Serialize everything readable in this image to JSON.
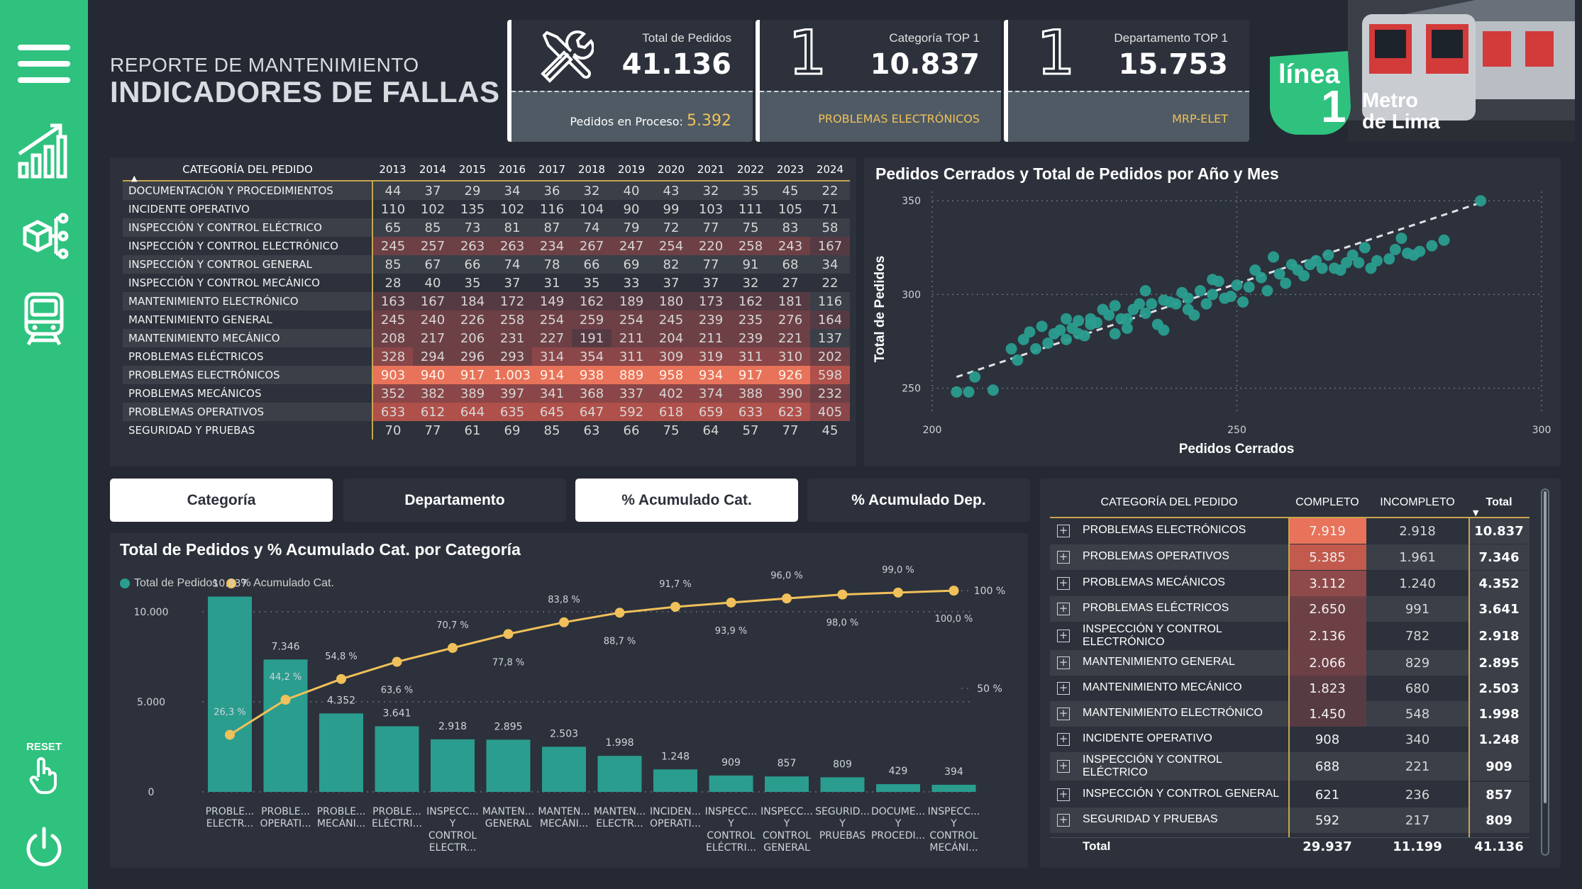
{
  "header": {
    "subtitle": "REPORTE DE MANTENIMIENTO",
    "title": "INDICADORES DE FALLAS"
  },
  "sidebar": {
    "reset_label": "RESET",
    "icons": [
      "menu-icon",
      "chart-growth-icon",
      "cube-network-icon",
      "train-icon",
      "hand-pointer-icon",
      "power-icon"
    ]
  },
  "kpis": [
    {
      "label": "Total de Pedidos",
      "value": "41.136",
      "sub_label": "Pedidos en Proceso:",
      "sub_value": "5.392",
      "icon": "tools-icon"
    },
    {
      "label": "Categoría TOP 1",
      "value": "10.837",
      "sub_label": "PROBLEMAS ELECTRÓNICOS",
      "icon": "number-one-icon",
      "icon_text": "1"
    },
    {
      "label": "Departamento TOP 1",
      "value": "15.753",
      "sub_label": "MRP-ELET",
      "icon": "number-one-icon",
      "icon_text": "1"
    }
  ],
  "logo": {
    "line": "línea",
    "number": "1",
    "brand_line1": "Metro",
    "brand_line2": "de Lima"
  },
  "matrix": {
    "header_category": "CATEGORÍA DEL PEDIDO",
    "years": [
      "2013",
      "2014",
      "2015",
      "2016",
      "2017",
      "2018",
      "2019",
      "2020",
      "2021",
      "2022",
      "2023",
      "2024"
    ],
    "rows": [
      {
        "name": "DOCUMENTACIÓN Y PROCEDIMIENTOS",
        "values": [
          "44",
          "37",
          "29",
          "34",
          "36",
          "32",
          "40",
          "43",
          "32",
          "35",
          "45",
          "22"
        ]
      },
      {
        "name": "INCIDENTE OPERATIVO",
        "values": [
          "110",
          "102",
          "135",
          "102",
          "116",
          "104",
          "90",
          "99",
          "103",
          "111",
          "105",
          "71"
        ]
      },
      {
        "name": "INSPECCIÓN Y CONTROL ELÉCTRICO",
        "values": [
          "65",
          "85",
          "73",
          "81",
          "87",
          "74",
          "79",
          "72",
          "77",
          "75",
          "83",
          "58"
        ]
      },
      {
        "name": "INSPECCIÓN Y CONTROL ELECTRÓNICO",
        "values": [
          "245",
          "257",
          "263",
          "263",
          "234",
          "267",
          "247",
          "254",
          "220",
          "258",
          "243",
          "167"
        ]
      },
      {
        "name": "INSPECCIÓN Y CONTROL GENERAL",
        "values": [
          "85",
          "67",
          "66",
          "74",
          "78",
          "66",
          "69",
          "82",
          "77",
          "91",
          "68",
          "34"
        ]
      },
      {
        "name": "INSPECCIÓN Y CONTROL MECÁNICO",
        "values": [
          "28",
          "40",
          "35",
          "37",
          "31",
          "35",
          "33",
          "37",
          "37",
          "32",
          "27",
          "22"
        ]
      },
      {
        "name": "MANTENIMIENTO ELECTRÓNICO",
        "values": [
          "163",
          "167",
          "184",
          "172",
          "149",
          "162",
          "189",
          "180",
          "173",
          "162",
          "181",
          "116"
        ]
      },
      {
        "name": "MANTENIMIENTO GENERAL",
        "values": [
          "245",
          "240",
          "226",
          "258",
          "254",
          "259",
          "254",
          "245",
          "239",
          "235",
          "276",
          "164"
        ]
      },
      {
        "name": "MANTENIMIENTO MECÁNICO",
        "values": [
          "208",
          "217",
          "206",
          "231",
          "227",
          "191",
          "211",
          "204",
          "211",
          "239",
          "221",
          "137"
        ]
      },
      {
        "name": "PROBLEMAS ELÉCTRICOS",
        "values": [
          "328",
          "294",
          "296",
          "293",
          "314",
          "354",
          "311",
          "309",
          "319",
          "311",
          "310",
          "202"
        ]
      },
      {
        "name": "PROBLEMAS ELECTRÓNICOS",
        "values": [
          "903",
          "940",
          "917",
          "1.003",
          "914",
          "938",
          "889",
          "958",
          "934",
          "917",
          "926",
          "598"
        ]
      },
      {
        "name": "PROBLEMAS MECÁNICOS",
        "values": [
          "352",
          "382",
          "389",
          "397",
          "341",
          "368",
          "337",
          "402",
          "374",
          "388",
          "390",
          "232"
        ]
      },
      {
        "name": "PROBLEMAS OPERATIVOS",
        "values": [
          "633",
          "612",
          "644",
          "635",
          "645",
          "647",
          "592",
          "618",
          "659",
          "633",
          "623",
          "405"
        ]
      },
      {
        "name": "SEGURIDAD Y PRUEBAS",
        "values": [
          "70",
          "77",
          "61",
          "69",
          "85",
          "63",
          "66",
          "75",
          "64",
          "57",
          "77",
          "45"
        ]
      }
    ]
  },
  "scatter": {
    "title": "Pedidos Cerrados y Total de Pedidos por Año y Mes",
    "xlabel": "Pedidos Cerrados",
    "ylabel": "Total de Pedidos",
    "xticks": [
      "200",
      "250",
      "300"
    ],
    "yticks": [
      "250",
      "300",
      "350"
    ]
  },
  "toggle_buttons": [
    {
      "label": "Categoría",
      "active": true
    },
    {
      "label": "Departamento",
      "active": false
    },
    {
      "label": "% Acumulado Cat.",
      "active": true
    },
    {
      "label": "% Acumulado Dep.",
      "active": false
    }
  ],
  "pareto": {
    "title": "Total de Pedidos y % Acumulado Cat. por Categoría",
    "legend": [
      "Total de Pedidos",
      "% Acumulado Cat."
    ],
    "y_left_ticks": [
      "10.000",
      "5.000",
      "0"
    ],
    "y_right_ticks": [
      "100 %",
      "50 %"
    ]
  },
  "chart_data": [
    {
      "type": "bar",
      "title": "Total de Pedidos y % Acumulado Cat. por Categoría",
      "categories": [
        [
          "PROBLE...",
          "ELECTR..."
        ],
        [
          "PROBLE...",
          "OPERATI..."
        ],
        [
          "PROBLE...",
          "MECÁNI..."
        ],
        [
          "PROBLE...",
          "ELÉCTRI..."
        ],
        [
          "INSPECC...",
          "Y",
          "CONTROL",
          "ELECTR..."
        ],
        [
          "MANTEN...",
          "GENERAL"
        ],
        [
          "MANTEN...",
          "MECÁNI..."
        ],
        [
          "MANTEN...",
          "ELECTR..."
        ],
        [
          "INCIDEN...",
          "OPERATI..."
        ],
        [
          "INSPECC...",
          "Y",
          "CONTROL",
          "ELÉCTRI..."
        ],
        [
          "INSPECC...",
          "Y",
          "CONTROL",
          "GENERAL"
        ],
        [
          "SEGURID...",
          "Y",
          "PRUEBAS"
        ],
        [
          "DOCUME...",
          "Y",
          "PROCEDI..."
        ],
        [
          "INSPECC...",
          "Y",
          "CONTROL",
          "MECÁNI..."
        ]
      ],
      "series": [
        {
          "name": "Total de Pedidos",
          "values": [
            10837,
            7346,
            4352,
            3641,
            2918,
            2895,
            2503,
            1998,
            1248,
            909,
            857,
            809,
            429,
            394
          ],
          "labels": [
            "10.837",
            "7.346",
            "4.352",
            "3.641",
            "2.918",
            "2.895",
            "2.503",
            "1.998",
            "1.248",
            "909",
            "857",
            "809",
            "429",
            "394"
          ],
          "color": "#2a9d8f"
        },
        {
          "name": "% Acumulado Cat.",
          "values": [
            26.3,
            44.2,
            54.8,
            63.6,
            70.7,
            77.8,
            83.8,
            88.7,
            91.7,
            93.9,
            96.0,
            98.0,
            99.0,
            100.0
          ],
          "labels": [
            "26,3 %",
            "44,2 %",
            "54,8 %",
            "63,6 %",
            "70,7 %",
            "77,8 %",
            "83,8 %",
            "88,7 %",
            "91,7 %",
            "93,9 %",
            "96,0 %",
            "98,0 %",
            "99,0 %",
            "100,0 %"
          ],
          "color": "#f0c05a"
        }
      ],
      "ylim": [
        0,
        12000
      ],
      "y2lim": [
        0,
        110
      ]
    },
    {
      "type": "scatter",
      "title": "Pedidos Cerrados y Total de Pedidos por Año y Mes",
      "xlabel": "Pedidos Cerrados",
      "ylabel": "Total de Pedidos",
      "xlim": [
        200,
        300
      ],
      "ylim": [
        240,
        355
      ],
      "trendline": [
        [
          204,
          256
        ],
        [
          290,
          349
        ]
      ],
      "x": [
        204,
        206,
        207,
        210,
        213,
        214,
        215,
        216,
        217,
        218,
        219,
        220,
        221,
        222,
        222,
        223,
        224,
        224,
        225,
        226,
        226,
        227,
        228,
        229,
        230,
        230,
        231,
        232,
        232,
        233,
        234,
        235,
        235,
        236,
        237,
        238,
        238,
        239,
        240,
        241,
        242,
        242,
        243,
        244,
        245,
        246,
        246,
        247,
        248,
        249,
        250,
        251,
        252,
        253,
        254,
        255,
        256,
        257,
        258,
        259,
        260,
        261,
        262,
        263,
        264,
        265,
        266,
        267,
        268,
        269,
        270,
        271,
        272,
        273,
        275,
        276,
        277,
        278,
        279,
        280,
        282,
        284,
        290
      ],
      "y": [
        248,
        248,
        256,
        249,
        271,
        265,
        276,
        280,
        271,
        283,
        274,
        279,
        281,
        287,
        276,
        282,
        279,
        286,
        278,
        284,
        287,
        285,
        292,
        289,
        279,
        294,
        287,
        287,
        282,
        292,
        295,
        290,
        302,
        295,
        284,
        297,
        281,
        296,
        295,
        301,
        292,
        298,
        289,
        302,
        295,
        308,
        300,
        307,
        298,
        299,
        305,
        296,
        304,
        313,
        309,
        302,
        320,
        311,
        306,
        316,
        313,
        310,
        316,
        318,
        314,
        321,
        314,
        313,
        317,
        321,
        317,
        325,
        314,
        318,
        319,
        324,
        330,
        322,
        321,
        323,
        326,
        329,
        350
      ]
    }
  ],
  "right_table": {
    "headers": [
      "CATEGORÍA DEL PEDIDO",
      "COMPLETO",
      "INCOMPLETO",
      "Total"
    ],
    "rows": [
      {
        "name": "PROBLEMAS ELECTRÓNICOS",
        "completo": "7.919",
        "incompleto": "2.918",
        "total": "10.837"
      },
      {
        "name": "PROBLEMAS OPERATIVOS",
        "completo": "5.385",
        "incompleto": "1.961",
        "total": "7.346"
      },
      {
        "name": "PROBLEMAS MECÁNICOS",
        "completo": "3.112",
        "incompleto": "1.240",
        "total": "4.352"
      },
      {
        "name": "PROBLEMAS ELÉCTRICOS",
        "completo": "2.650",
        "incompleto": "991",
        "total": "3.641"
      },
      {
        "name": "INSPECCIÓN Y CONTROL ELECTRÓNICO",
        "completo": "2.136",
        "incompleto": "782",
        "total": "2.918"
      },
      {
        "name": "MANTENIMIENTO GENERAL",
        "completo": "2.066",
        "incompleto": "829",
        "total": "2.895"
      },
      {
        "name": "MANTENIMIENTO MECÁNICO",
        "completo": "1.823",
        "incompleto": "680",
        "total": "2.503"
      },
      {
        "name": "MANTENIMIENTO ELECTRÓNICO",
        "completo": "1.450",
        "incompleto": "548",
        "total": "1.998"
      },
      {
        "name": "INCIDENTE OPERATIVO",
        "completo": "908",
        "incompleto": "340",
        "total": "1.248"
      },
      {
        "name": "INSPECCIÓN Y CONTROL ELÉCTRICO",
        "completo": "688",
        "incompleto": "221",
        "total": "909"
      },
      {
        "name": "INSPECCIÓN Y CONTROL GENERAL",
        "completo": "621",
        "incompleto": "236",
        "total": "857"
      },
      {
        "name": "SEGURIDAD Y PRUEBAS",
        "completo": "592",
        "incompleto": "217",
        "total": "809"
      }
    ],
    "total_row": {
      "name": "Total",
      "completo": "29.937",
      "incompleto": "11.199",
      "total": "41.136"
    }
  },
  "colors": {
    "accent_green": "#2ec27e",
    "teal": "#2a9d8f",
    "gold": "#f0c05a",
    "background": "#252934",
    "panel": "#2c313b"
  }
}
